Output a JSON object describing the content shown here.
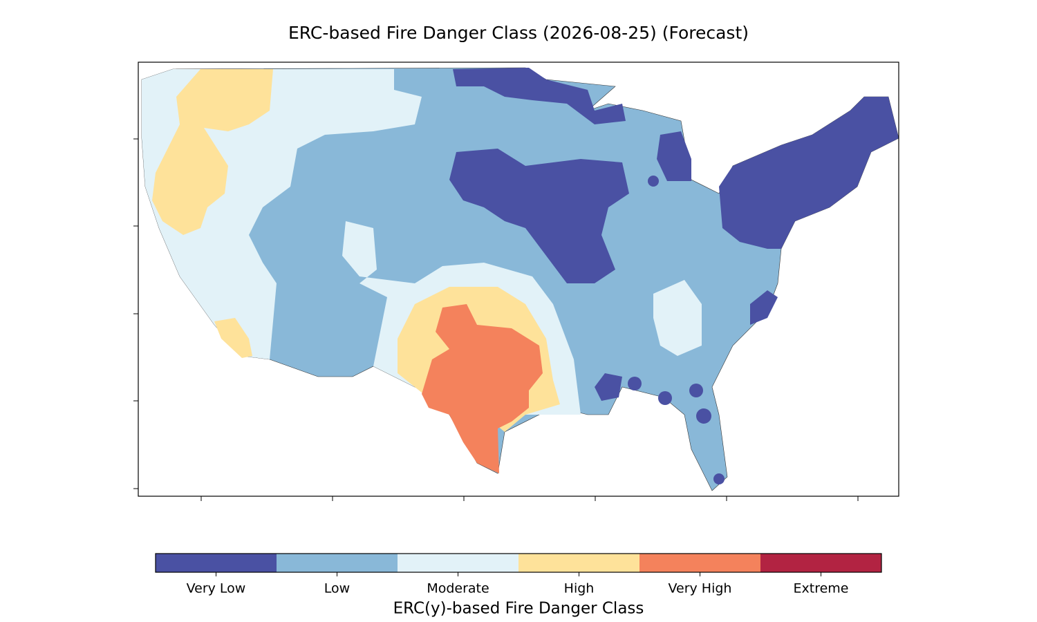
{
  "title": "ERC-based Fire Danger Class (2026-08-25) (Forecast)",
  "legend": {
    "title": "ERC(y)-based Fire Danger Class",
    "classes": [
      {
        "label": "Very Low",
        "color": "#4a51a3"
      },
      {
        "label": "Low",
        "color": "#89b8d8"
      },
      {
        "label": "Moderate",
        "color": "#e2f2f8"
      },
      {
        "label": "High",
        "color": "#fee29a"
      },
      {
        "label": "Very High",
        "color": "#f4825c"
      },
      {
        "label": "Extreme",
        "color": "#b22342"
      }
    ]
  }
}
